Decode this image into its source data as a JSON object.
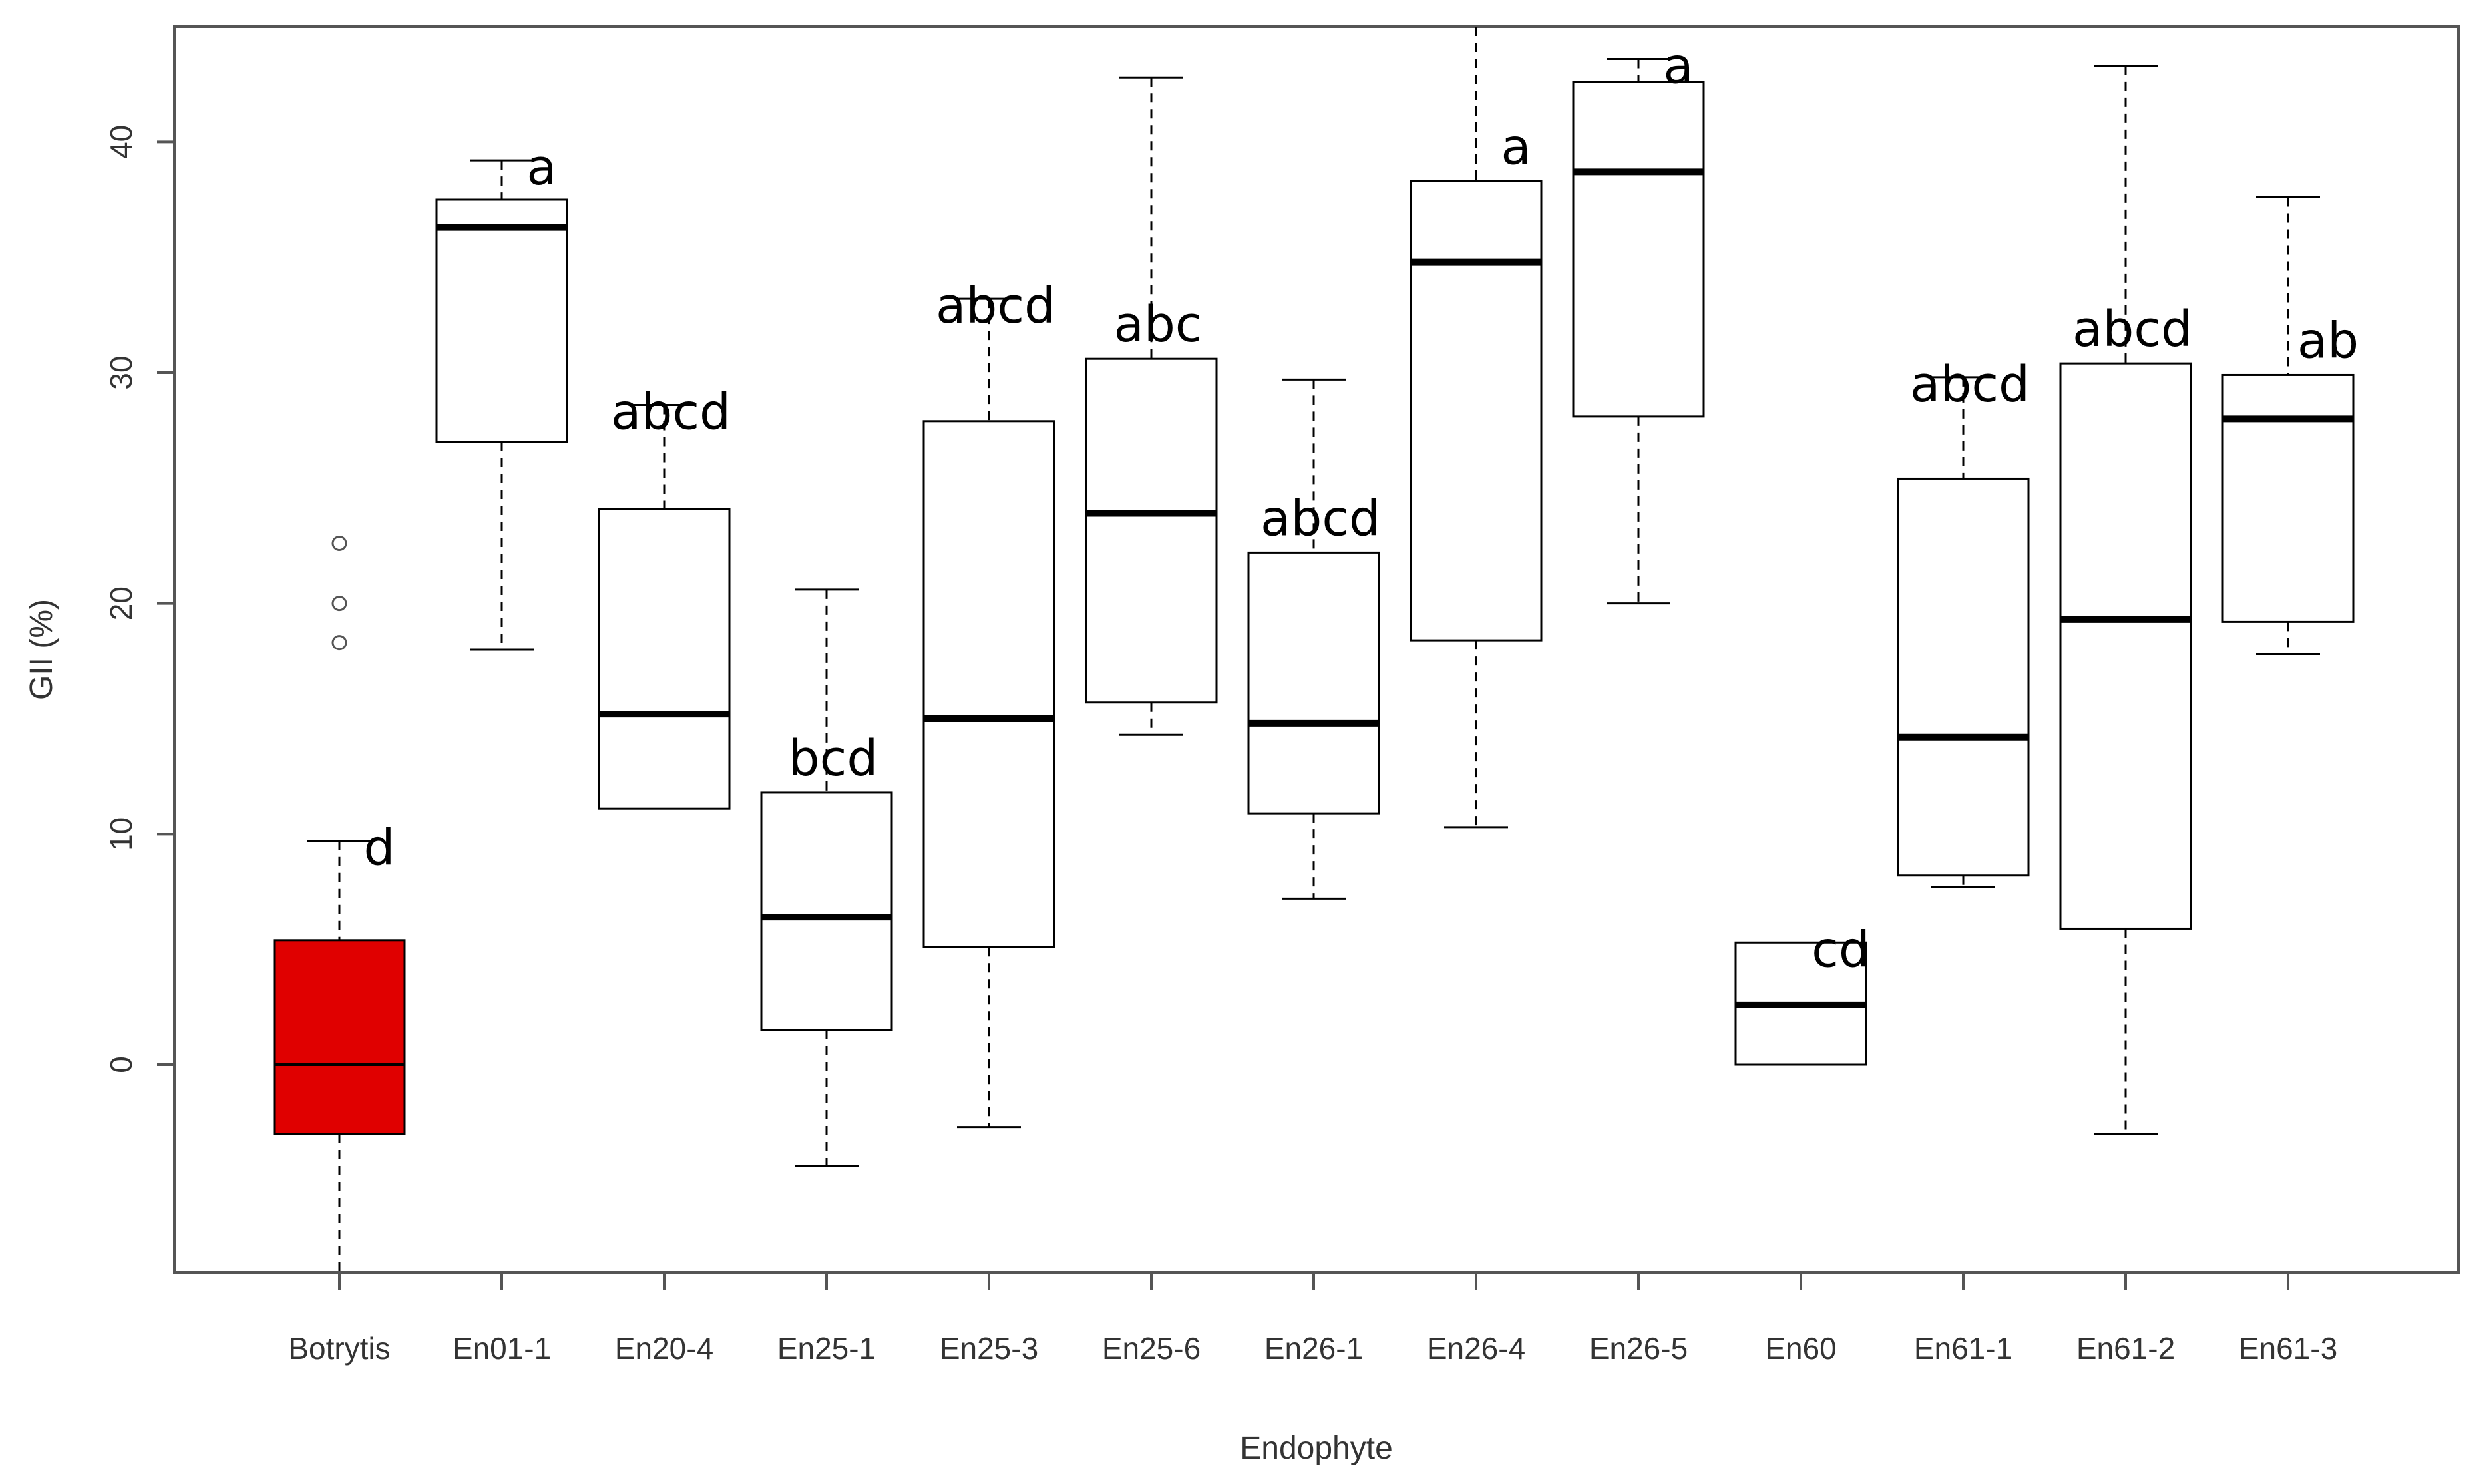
{
  "chart_data": {
    "type": "box",
    "title": "",
    "xlabel": "Endophyte",
    "ylabel": "GII (%)",
    "ylim": [
      -9,
      45
    ],
    "yticks": [
      0,
      10,
      20,
      30,
      40
    ],
    "grid": false,
    "legend": "none",
    "colors": {
      "highlight_fill": "#e00000",
      "box_fill": "#ffffff",
      "stroke": "#000000",
      "axis": "#555555"
    },
    "categories": [
      "Botrytis",
      "En01-1",
      "En20-4",
      "En25-1",
      "En25-3",
      "En25-6",
      "En26-1",
      "En26-4",
      "En26-5",
      "En60",
      "En61-1",
      "En61-2",
      "En61-3"
    ],
    "series": [
      {
        "boxes": [
          {
            "category": "Botrytis",
            "whisker_low": -9,
            "q1": -3,
            "median": 0,
            "q3": 5.4,
            "whisker_high": 9.7,
            "outliers": [
              18.3,
              20.0,
              22.6
            ],
            "sig": "d",
            "highlight": true
          },
          {
            "category": "En01-1",
            "whisker_low": 18,
            "q1": 27,
            "median": 36.3,
            "q3": 37.5,
            "whisker_high": 39.2,
            "outliers": [],
            "sig": "a"
          },
          {
            "category": "En20-4",
            "whisker_low": 11.1,
            "q1": 11.1,
            "median": 15.2,
            "q3": 24.1,
            "whisker_high": 28.6,
            "outliers": [],
            "sig": "abcd"
          },
          {
            "category": "En25-1",
            "whisker_low": -4.4,
            "q1": 1.5,
            "median": 6.4,
            "q3": 11.8,
            "whisker_high": 20.6,
            "outliers": [],
            "sig": "bcd"
          },
          {
            "category": "En25-3",
            "whisker_low": -2.7,
            "q1": 5.1,
            "median": 15.0,
            "q3": 27.9,
            "whisker_high": 33.2,
            "outliers": [],
            "sig": "abcd"
          },
          {
            "category": "En25-6",
            "whisker_low": 14.3,
            "q1": 15.7,
            "median": 23.9,
            "q3": 30.6,
            "whisker_high": 42.8,
            "outliers": [],
            "sig": "abc"
          },
          {
            "category": "En26-1",
            "whisker_low": 7.2,
            "q1": 10.9,
            "median": 14.8,
            "q3": 22.2,
            "whisker_high": 29.7,
            "outliers": [],
            "sig": "abcd"
          },
          {
            "category": "En26-4",
            "whisker_low": 10.3,
            "q1": 18.4,
            "median": 34.8,
            "q3": 38.3,
            "whisker_high": 45,
            "outliers": [],
            "sig": "a"
          },
          {
            "category": "En26-5",
            "whisker_low": 20.0,
            "q1": 28.1,
            "median": 38.7,
            "q3": 42.6,
            "whisker_high": 43.6,
            "outliers": [],
            "sig": "a"
          },
          {
            "category": "En60",
            "whisker_low": 0,
            "q1": 0,
            "median": 2.6,
            "q3": 5.3,
            "whisker_high": 5.3,
            "outliers": [],
            "sig": "cd"
          },
          {
            "category": "En61-1",
            "whisker_low": 7.7,
            "q1": 8.2,
            "median": 14.2,
            "q3": 25.4,
            "whisker_high": 29.8,
            "outliers": [],
            "sig": "abcd"
          },
          {
            "category": "En61-2",
            "whisker_low": -3.0,
            "q1": 5.9,
            "median": 19.3,
            "q3": 30.4,
            "whisker_high": 43.3,
            "outliers": [],
            "sig": "abcd"
          },
          {
            "category": "En61-3",
            "whisker_low": 17.8,
            "q1": 19.2,
            "median": 28.0,
            "q3": 29.9,
            "whisker_high": 37.6,
            "outliers": [],
            "sig": "ab"
          }
        ]
      }
    ]
  }
}
